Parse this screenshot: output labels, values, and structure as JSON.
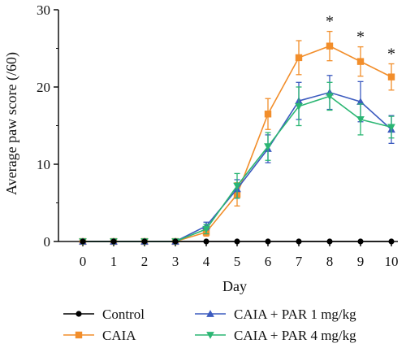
{
  "chart_data": {
    "type": "line",
    "title": "",
    "xlabel": "Day",
    "ylabel": "Average paw score (/60)",
    "x": [
      0,
      1,
      2,
      3,
      4,
      5,
      6,
      7,
      8,
      9,
      10
    ],
    "xlim": [
      0,
      10
    ],
    "ylim": [
      0,
      30
    ],
    "yticks": [
      0,
      10,
      20,
      30
    ],
    "grid": false,
    "legend_position": "bottom",
    "series": [
      {
        "name": "Control",
        "color": "#000000",
        "marker": "circle",
        "values": [
          0,
          0,
          0,
          0,
          0,
          0,
          0,
          0,
          0,
          0,
          0
        ],
        "errors": [
          0,
          0,
          0,
          0,
          0,
          0,
          0,
          0,
          0,
          0,
          0
        ]
      },
      {
        "name": "CAIA",
        "color": "#f28e2b",
        "marker": "square",
        "values": [
          0,
          0,
          0,
          0,
          1.2,
          6.1,
          16.5,
          23.8,
          25.3,
          23.3,
          21.3
        ],
        "errors": [
          0,
          0,
          0,
          0,
          0.5,
          1.5,
          2.0,
          2.2,
          1.9,
          1.9,
          1.7
        ]
      },
      {
        "name": "CAIA + PAR 1 mg/kg",
        "color": "#3c5bbf",
        "marker": "triangle-up",
        "values": [
          0,
          0,
          0,
          0,
          2.0,
          6.8,
          12.0,
          18.2,
          19.3,
          18.1,
          14.5
        ],
        "errors": [
          0,
          0,
          0,
          0,
          0.5,
          1.2,
          1.8,
          2.4,
          2.2,
          2.6,
          1.8
        ]
      },
      {
        "name": "CAIA + PAR 4 mg/kg",
        "color": "#2bb673",
        "marker": "triangle-down",
        "values": [
          0,
          0,
          0,
          0,
          1.6,
          7.2,
          12.3,
          17.5,
          18.8,
          15.8,
          14.8
        ],
        "errors": [
          0,
          0,
          0,
          0,
          0.6,
          1.6,
          1.8,
          2.5,
          1.8,
          2.0,
          1.4
        ]
      }
    ],
    "annotations": [
      {
        "x": 8,
        "text": "*"
      },
      {
        "x": 9,
        "text": "*"
      },
      {
        "x": 10,
        "text": "*"
      }
    ]
  }
}
